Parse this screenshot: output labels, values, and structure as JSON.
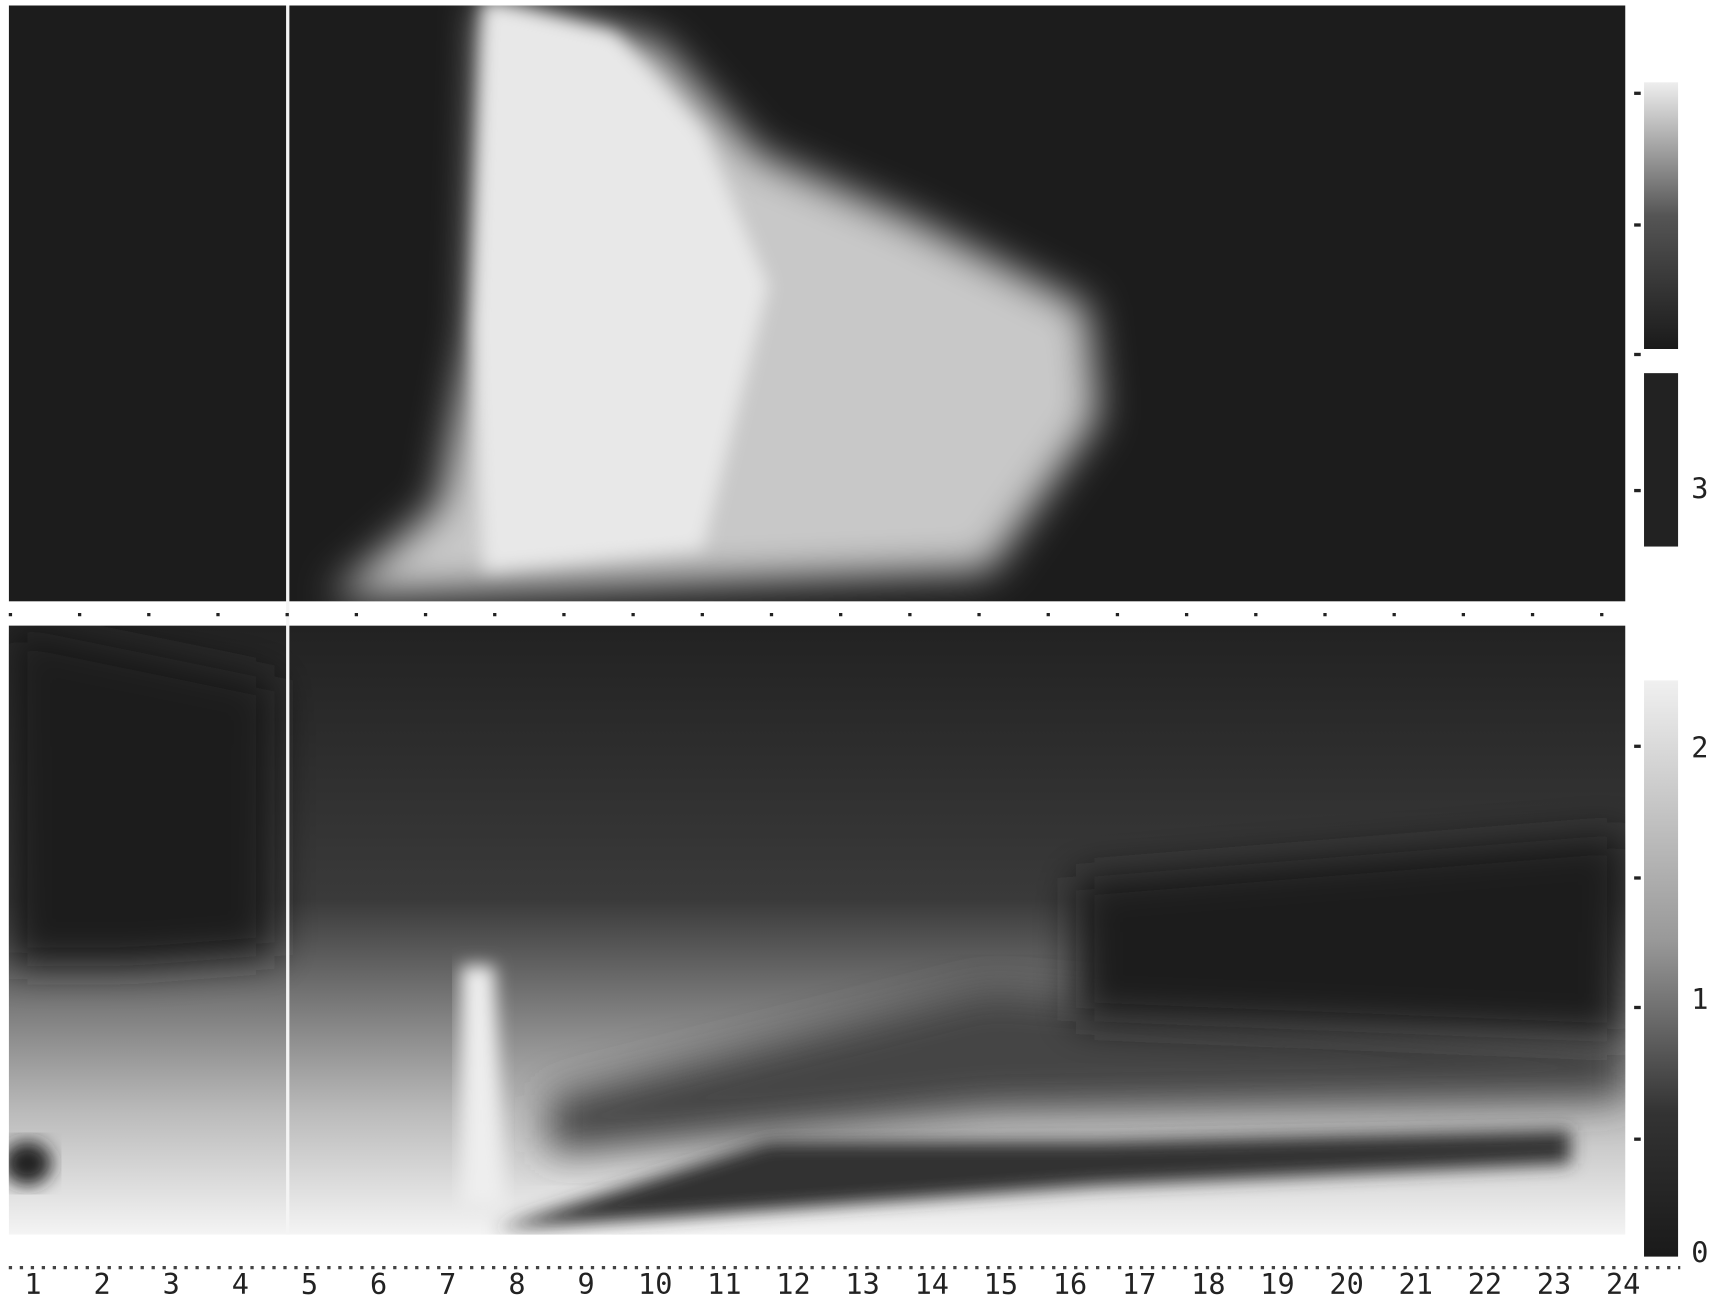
{
  "x_axis": {
    "labels": [
      "1",
      "2",
      "3",
      "4",
      "5",
      "6",
      "7",
      "8",
      "9",
      "10",
      "11",
      "12",
      "13",
      "14",
      "15",
      "16",
      "17",
      "18",
      "19",
      "20",
      "21",
      "22",
      "23",
      "24"
    ]
  },
  "colorbar_top": {
    "labels": [
      "3"
    ]
  },
  "colorbar_bottom": {
    "labels": [
      "2",
      "1",
      "0"
    ]
  }
}
